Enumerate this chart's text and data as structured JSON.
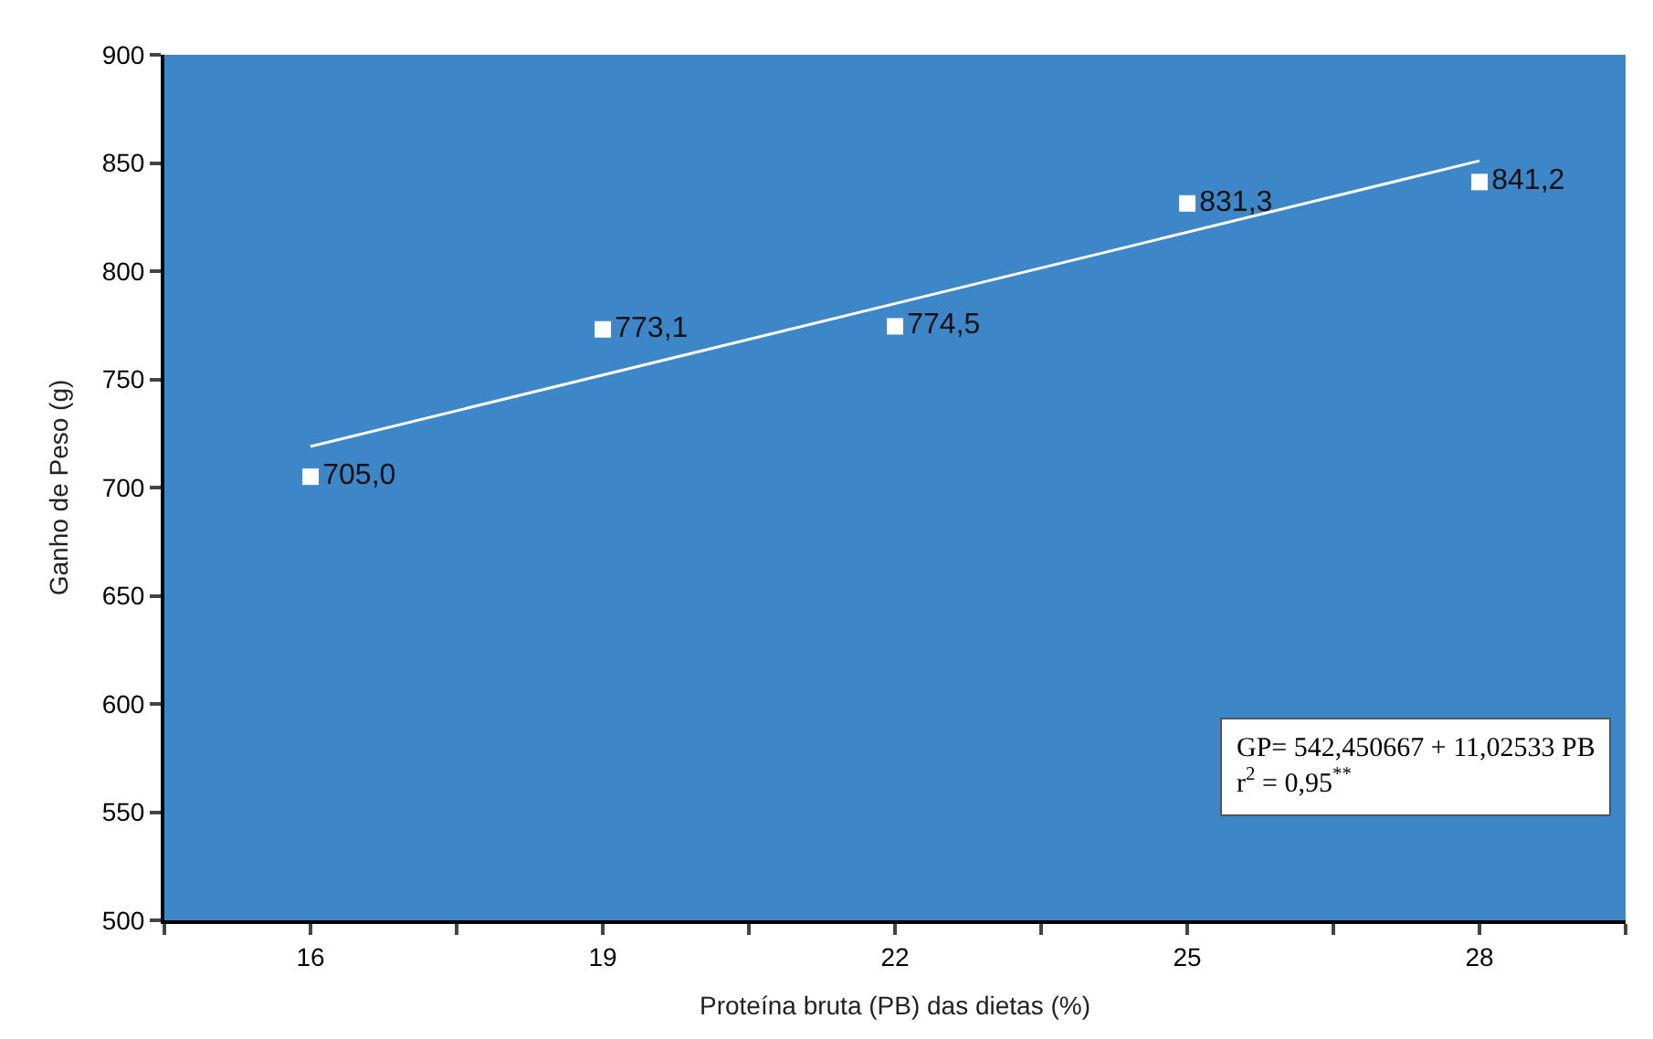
{
  "chart_data": {
    "type": "scatter",
    "xlabel": "Proteína bruta (PB) das dietas (%)",
    "ylabel": "Ganho de Peso (g)",
    "x": [
      16,
      19,
      22,
      25,
      28
    ],
    "series": [
      {
        "type": "scatter",
        "color": "#ffffff",
        "values": [
          705.0,
          773.1,
          774.5,
          831.3,
          841.2
        ],
        "value_labels": [
          "705,0",
          "773,1",
          "774,5",
          "831,3",
          "841,2"
        ],
        "marker": "square"
      },
      {
        "type": "line",
        "color": "#ffffff",
        "x": [
          16,
          28
        ],
        "values": [
          719,
          851
        ],
        "line_style": "solid"
      }
    ],
    "xlim": [
      14.5,
      29.5
    ],
    "xticks": [
      {
        "value": 14.5,
        "label": null
      },
      16,
      {
        "value": 17.5,
        "label": null
      },
      19,
      {
        "value": 20.5,
        "label": null
      },
      22,
      {
        "value": 23.5,
        "label": null
      },
      25,
      {
        "value": 26.5,
        "label": null
      },
      28,
      {
        "value": 29.5,
        "label": null
      }
    ],
    "ylim": [
      500,
      900
    ],
    "yticks": [
      500,
      550,
      600,
      650,
      700,
      750,
      800,
      850,
      900
    ],
    "grid": false,
    "annotations": [
      "GP= 542,450667 + 11,02533 PB",
      "r$^{2}$ = 0,95$^{**}$"
    ]
  }
}
